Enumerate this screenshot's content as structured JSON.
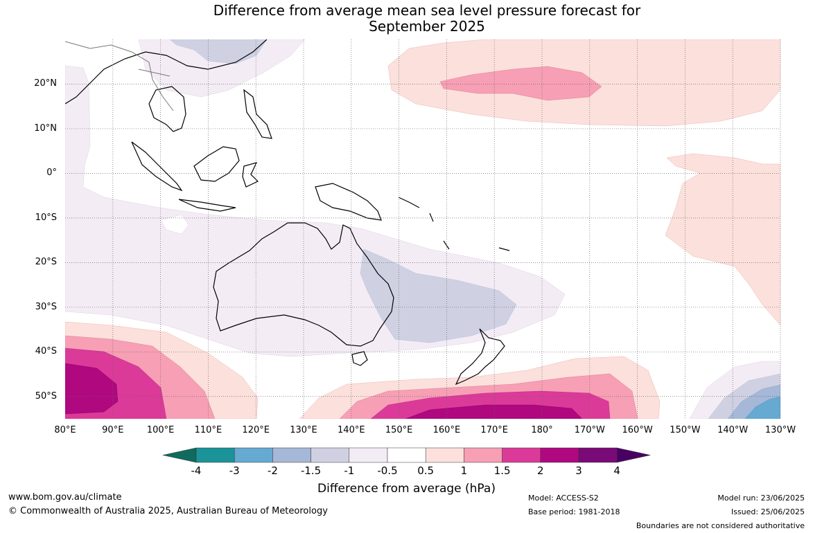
{
  "title_line1": "Difference from average mean sea level pressure forecast for",
  "title_line2": "September 2025",
  "map": {
    "lon_range": [
      80,
      230
    ],
    "lat_range": [
      -55,
      30
    ],
    "lat_ticks": [
      "20°N",
      "10°N",
      "0°",
      "10°S",
      "20°S",
      "30°S",
      "40°S",
      "50°S"
    ],
    "lon_ticks": [
      "80°E",
      "90°E",
      "100°E",
      "110°E",
      "120°E",
      "130°E",
      "140°E",
      "150°E",
      "160°E",
      "170°E",
      "180°",
      "170°W",
      "160°W",
      "150°W",
      "140°W",
      "130°W"
    ]
  },
  "colorbar": {
    "ticks": [
      "-4",
      "-3",
      "-2",
      "-1.5",
      "-1",
      "-0.5",
      "0.5",
      "1",
      "1.5",
      "2",
      "3",
      "4"
    ],
    "colors": [
      "#0f6b5e",
      "#1a9399",
      "#66a9d1",
      "#a5b8d7",
      "#cfd1e3",
      "#f3ecf5",
      "#ffffff",
      "#fce0dc",
      "#f79fb5",
      "#dc3a99",
      "#b0087f",
      "#7a0a77",
      "#4a0062"
    ],
    "label": "Difference from average (hPa)"
  },
  "footer": {
    "website": "www.bom.gov.au/climate",
    "copyright": "© Commonwealth of Australia 2025, Australian Bureau of Meteorology",
    "model": "Model: ACCESS-S2",
    "base_period": "Base period: 1981-2018",
    "model_run": "Model run: 23/06/2025",
    "issued": "Issued: 25/06/2025",
    "disclaimer": "Boundaries are not considered authoritative"
  }
}
